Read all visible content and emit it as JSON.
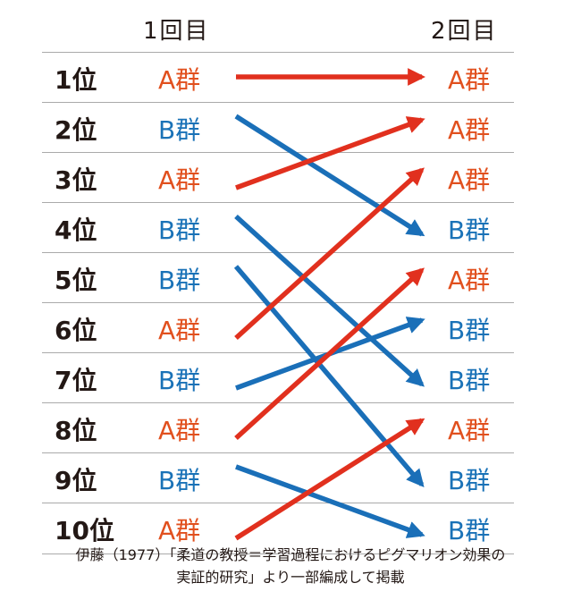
{
  "header": {
    "round1": "1回目",
    "round2": "2回目"
  },
  "rows": [
    {
      "rank": "1位",
      "before": "A群",
      "after": "A群"
    },
    {
      "rank": "2位",
      "before": "B群",
      "after": "A群"
    },
    {
      "rank": "3位",
      "before": "A群",
      "after": "A群"
    },
    {
      "rank": "4位",
      "before": "B群",
      "after": "B群"
    },
    {
      "rank": "5位",
      "before": "B群",
      "after": "A群"
    },
    {
      "rank": "6位",
      "before": "A群",
      "after": "B群"
    },
    {
      "rank": "7位",
      "before": "B群",
      "after": "B群"
    },
    {
      "rank": "8位",
      "before": "A群",
      "after": "A群"
    },
    {
      "rank": "9位",
      "before": "B群",
      "after": "B群"
    },
    {
      "rank": "10位",
      "before": "A群",
      "after": "B群"
    }
  ],
  "arrows": [
    {
      "from_rank": 1,
      "to_rank": 1,
      "group": "A"
    },
    {
      "from_rank": 2,
      "to_rank": 4,
      "group": "B"
    },
    {
      "from_rank": 3,
      "to_rank": 2,
      "group": "A"
    },
    {
      "from_rank": 4,
      "to_rank": 7,
      "group": "B"
    },
    {
      "from_rank": 5,
      "to_rank": 9,
      "group": "B"
    },
    {
      "from_rank": 6,
      "to_rank": 3,
      "group": "A"
    },
    {
      "from_rank": 7,
      "to_rank": 6,
      "group": "B"
    },
    {
      "from_rank": 8,
      "to_rank": 5,
      "group": "A"
    },
    {
      "from_rank": 9,
      "to_rank": 10,
      "group": "B"
    },
    {
      "from_rank": 10,
      "to_rank": 8,
      "group": "A"
    }
  ],
  "colors": {
    "A": "#e1301e",
    "B": "#1a6fb8",
    "text_A": "#e1501e",
    "text_B": "#1a72b7"
  },
  "caption": {
    "line1": "伊藤（1977）「柔道の教授＝学習過程におけるピグマリオン効果の",
    "line2": "実証的研究」より一部編成して掲載"
  }
}
